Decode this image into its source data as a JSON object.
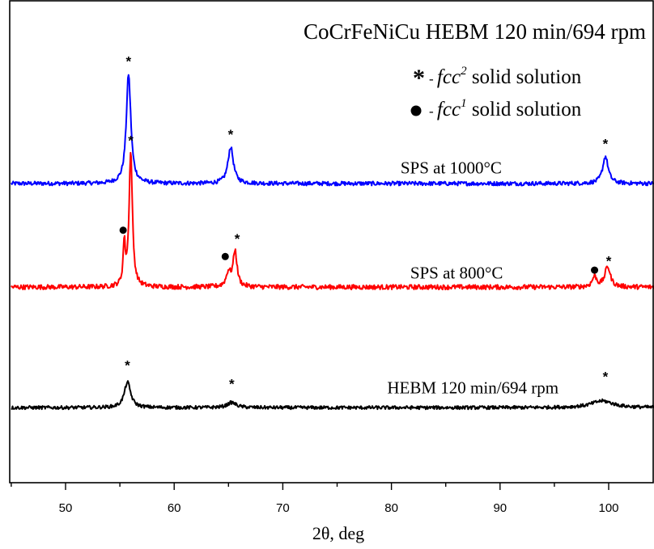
{
  "chart_data": {
    "type": "line",
    "title": "CoCrFeNiCu HEBM 120 min/694 rpm",
    "xlabel": "2θ, deg",
    "ylabel": "",
    "xlim": [
      45,
      105
    ],
    "x_ticks": [
      50,
      60,
      70,
      80,
      90,
      100
    ],
    "x_tick_labels": [
      "50",
      "60",
      "70",
      "80",
      "90",
      "100"
    ],
    "y_ticks_shown": false,
    "grid": false,
    "legend": {
      "position": "top-right",
      "items": [
        {
          "symbol": "*",
          "prefix": "- ",
          "phase_base": "fcc",
          "phase_sup": "2",
          "suffix": " solid solution"
        },
        {
          "symbol": "•",
          "prefix": "- ",
          "phase_base": "fcc",
          "phase_sup": "1",
          "suffix": " solid solution"
        }
      ]
    },
    "series": [
      {
        "name": "SPS at 1000°C",
        "color": "#0000ff",
        "baseline": 0.6,
        "noise": 0.006,
        "peaks": [
          {
            "x": 55.8,
            "height": 1.29,
            "width": 0.25
          },
          {
            "x": 65.2,
            "height": 0.43,
            "width": 0.3
          },
          {
            "x": 99.7,
            "height": 0.32,
            "width": 0.3
          }
        ]
      },
      {
        "name": "SPS at 800°C",
        "color": "#ff0000",
        "baseline": -0.62,
        "noise": 0.007,
        "peaks": [
          {
            "x": 55.4,
            "height": 0.48,
            "width": 0.12
          },
          {
            "x": 56.0,
            "height": 1.58,
            "width": 0.18
          },
          {
            "x": 65.0,
            "height": 0.16,
            "width": 0.25
          },
          {
            "x": 65.6,
            "height": 0.42,
            "width": 0.22
          },
          {
            "x": 98.7,
            "height": 0.12,
            "width": 0.25
          },
          {
            "x": 99.9,
            "height": 0.24,
            "width": 0.3
          }
        ]
      },
      {
        "name": "HEBM 120 min/694 rpm",
        "color": "#000000",
        "baseline": -2.04,
        "noise": 0.005,
        "peaks": [
          {
            "x": 55.7,
            "height": 0.3,
            "width": 0.35
          },
          {
            "x": 65.3,
            "height": 0.06,
            "width": 0.5
          },
          {
            "x": 99.4,
            "height": 0.08,
            "width": 1.2
          }
        ]
      }
    ],
    "annotations": [
      {
        "symbol": "*",
        "x": 55.8,
        "y": 2.06,
        "series": "SPS at 1000°C"
      },
      {
        "symbol": "*",
        "x": 65.2,
        "y": 1.2,
        "series": "SPS at 1000°C"
      },
      {
        "symbol": "*",
        "x": 99.7,
        "y": 1.09,
        "series": "SPS at 1000°C"
      },
      {
        "symbol": "*",
        "x": 56.0,
        "y": 1.13,
        "series": "SPS at 800°C"
      },
      {
        "symbol": "•",
        "x": 55.3,
        "y": 0.05,
        "series": "SPS at 800°C"
      },
      {
        "symbol": "*",
        "x": 65.8,
        "y": -0.03,
        "series": "SPS at 800°C"
      },
      {
        "symbol": "•",
        "x": 64.7,
        "y": -0.26,
        "series": "SPS at 800°C"
      },
      {
        "symbol": "•",
        "x": 98.7,
        "y": -0.42,
        "series": "SPS at 800°C"
      },
      {
        "symbol": "*",
        "x": 100.0,
        "y": -0.29,
        "series": "SPS at 800°C"
      },
      {
        "symbol": "*",
        "x": 55.7,
        "y": -1.52,
        "series": "HEBM 120 min/694 rpm"
      },
      {
        "symbol": "*",
        "x": 65.3,
        "y": -1.74,
        "series": "HEBM 120 min/694 rpm"
      },
      {
        "symbol": "*",
        "x": 99.7,
        "y": -1.65,
        "series": "HEBM 120 min/694 rpm"
      }
    ],
    "series_labels": [
      {
        "text": "SPS at 1000°C",
        "x": 85.5,
        "y": 0.72,
        "series": "SPS at 1000°C"
      },
      {
        "text": "SPS at 800°C",
        "x": 86.0,
        "y": -0.52,
        "series": "SPS at 800°C"
      },
      {
        "text": "HEBM 120 min/694 rpm",
        "x": 87.5,
        "y": -1.87,
        "series": "HEBM 120 min/694 rpm"
      }
    ],
    "ylim": [
      -2.5,
      3.0
    ]
  }
}
